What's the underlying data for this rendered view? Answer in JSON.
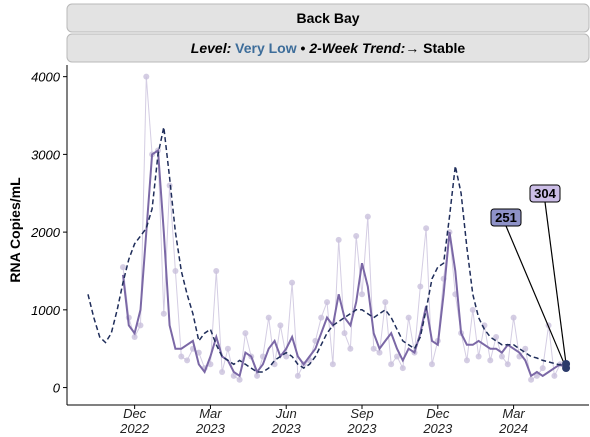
{
  "chart_data": {
    "type": "line",
    "title": "Back Bay",
    "subtitle": {
      "level_label": "Level:",
      "level": "Very Low",
      "separator": "•",
      "trend_label": "2-Week Trend:",
      "trend": "→ Stable"
    },
    "y_label": "RNA Copies/mL",
    "categories": [
      null,
      null,
      null,
      null,
      null,
      null,
      null,
      null,
      "Dec\n2022",
      null,
      null,
      null,
      null,
      null,
      null,
      null,
      null,
      null,
      null,
      null,
      null,
      "Mar\n2023",
      null,
      null,
      null,
      null,
      null,
      null,
      null,
      null,
      null,
      null,
      null,
      null,
      "Jun\n2023",
      null,
      null,
      null,
      null,
      null,
      null,
      null,
      null,
      null,
      null,
      null,
      null,
      "Sep\n2023",
      null,
      null,
      null,
      null,
      null,
      null,
      null,
      null,
      null,
      null,
      null,
      null,
      "Dec\n2023",
      null,
      null,
      null,
      null,
      null,
      null,
      null,
      null,
      null,
      null,
      null,
      null,
      "Mar\n2024",
      null,
      null,
      null,
      null,
      null,
      null,
      null,
      null,
      null
    ],
    "ylim": [
      -250,
      4150
    ],
    "yticks": [
      0,
      1000,
      2000,
      3000,
      4000
    ],
    "series": [
      {
        "style": "points",
        "color": "#c9c0dc",
        "values": [
          null,
          null,
          null,
          null,
          null,
          null,
          1550,
          900,
          650,
          800,
          4000,
          3000,
          3050,
          950,
          2600,
          1500,
          400,
          350,
          500,
          450,
          250,
          300,
          1500,
          200,
          500,
          150,
          100,
          700,
          400,
          150,
          400,
          900,
          300,
          800,
          400,
          1350,
          150,
          300,
          350,
          600,
          900,
          1100,
          300,
          1900,
          700,
          500,
          1950,
          1200,
          2200,
          500,
          450,
          1100,
          300,
          400,
          250,
          900,
          450,
          1300,
          2050,
          300,
          600,
          1400,
          2000,
          1200,
          700,
          350,
          1000,
          400,
          800,
          350,
          650,
          400,
          300,
          900,
          400,
          500,
          100,
          150,
          250,
          800,
          150,
          300,
          null
        ]
      },
      {
        "style": "solid",
        "color": "#7b68a6",
        "values": [
          null,
          null,
          null,
          null,
          null,
          null,
          1450,
          800,
          700,
          1000,
          2000,
          3000,
          3050,
          2000,
          800,
          500,
          500,
          550,
          600,
          300,
          200,
          400,
          650,
          400,
          350,
          200,
          150,
          450,
          400,
          200,
          300,
          500,
          600,
          400,
          500,
          650,
          400,
          300,
          400,
          500,
          700,
          900,
          800,
          1200,
          900,
          800,
          1100,
          1600,
          1300,
          700,
          500,
          600,
          700,
          500,
          350,
          500,
          450,
          700,
          1050,
          600,
          550,
          1200,
          2000,
          1500,
          700,
          550,
          550,
          600,
          550,
          500,
          500,
          450,
          550,
          500,
          450,
          350,
          150,
          200,
          150,
          200,
          250,
          300,
          251
        ],
        "label_color": "#8e92c8"
      },
      {
        "style": "dashed",
        "color": "#1f2d5a",
        "values": [
          1200,
          900,
          650,
          580,
          700,
          1000,
          1350,
          1650,
          1850,
          1950,
          2050,
          2300,
          3000,
          3350,
          2700,
          2000,
          1500,
          1200,
          950,
          600,
          700,
          750,
          550,
          400,
          350,
          300,
          350,
          300,
          250,
          200,
          200,
          250,
          350,
          400,
          450,
          400,
          300,
          250,
          300,
          400,
          550,
          700,
          800,
          850,
          900,
          950,
          1000,
          1000,
          950,
          900,
          950,
          1000,
          900,
          750,
          600,
          550,
          500,
          650,
          1000,
          1400,
          1550,
          1600,
          2200,
          2850,
          2500,
          1800,
          1200,
          900,
          750,
          650,
          600,
          550,
          550,
          550,
          500,
          450,
          400,
          380,
          350,
          330,
          310,
          290,
          304
        ],
        "label_color": "#cbbde6"
      }
    ]
  }
}
